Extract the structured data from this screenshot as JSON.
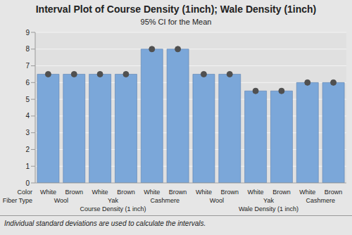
{
  "chart_data": {
    "type": "bar",
    "title": "Interval Plot of Course Density (1inch); Wale Density (1inch)",
    "subtitle": "95% CI for the Mean",
    "footnote": "Individual standard deviations are used to calculate the intervals.",
    "x_label": "Color",
    "categories": [
      "White",
      "Brown",
      "White",
      "Brown",
      "White",
      "Brown",
      "White",
      "Brown",
      "White",
      "Brown",
      "White",
      "Brown"
    ],
    "groups": {
      "label": "Fiber Type",
      "values": [
        "Wool",
        "Wool",
        "Yak",
        "Yak",
        "Cashmere",
        "Cashmere",
        "Wool",
        "Wool",
        "Yak",
        "Yak",
        "Cashmere",
        "Cashmere"
      ]
    },
    "panels": [
      "Course Density (1 inch)",
      "Course Density (1 inch)",
      "Course Density (1 inch)",
      "Course Density (1 inch)",
      "Course Density (1 inch)",
      "Course Density (1 inch)",
      "Wale Density (1 inch)",
      "Wale Density (1 inch)",
      "Wale Density (1 inch)",
      "Wale Density (1 inch)",
      "Wale Density (1 inch)",
      "Wale Density (1 inch)"
    ],
    "values": [
      6.5,
      6.5,
      6.5,
      6.5,
      8,
      8,
      6.5,
      6.5,
      5.5,
      5.5,
      6,
      6
    ],
    "color": "#7ba7d9",
    "marker": "circle",
    "ylim": [
      0,
      9
    ],
    "yticks": [
      0,
      1,
      2,
      3,
      4,
      5,
      6,
      7,
      8,
      9
    ],
    "grid": true
  }
}
